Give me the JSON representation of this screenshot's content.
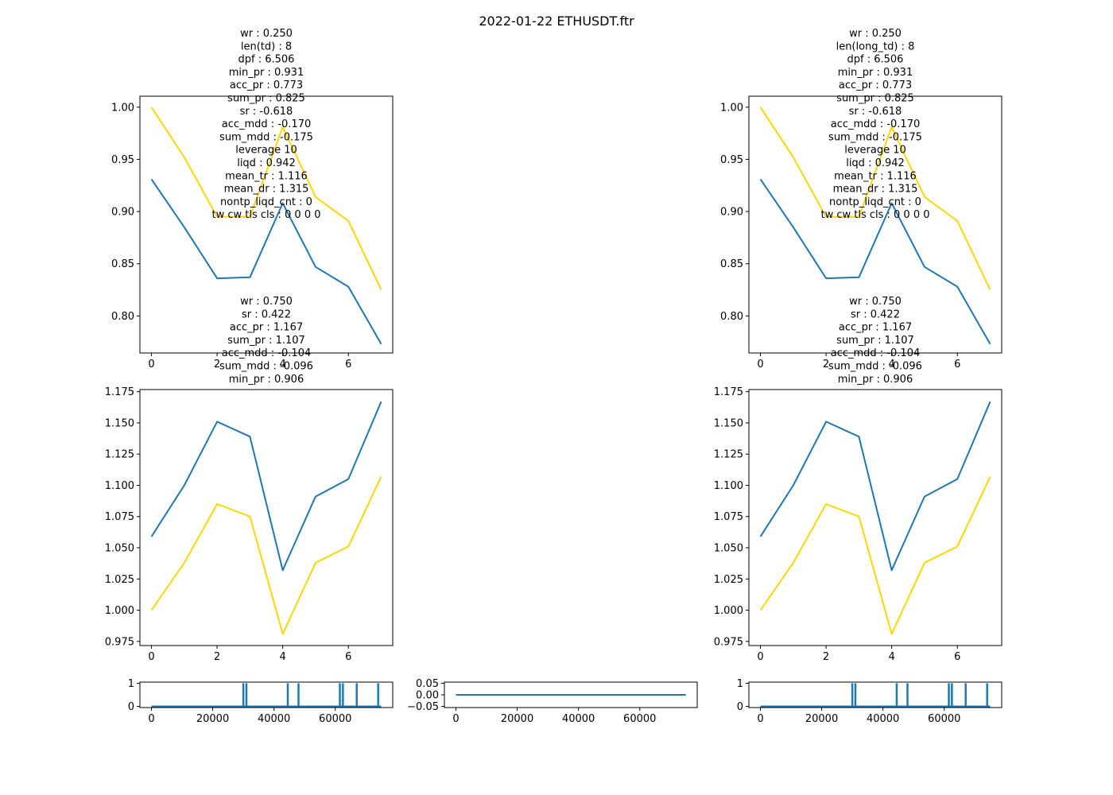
{
  "figure_title": "2022-01-22 ETHUSDT.ftr",
  "colors": {
    "blue": "#1f77b4",
    "gold": "#ffd700",
    "axis": "#000000"
  },
  "chart_data": [
    {
      "id": "top-left",
      "type": "line",
      "annotation": [
        "wr : 0.250",
        "len(td) : 8",
        "dpf : 6.506",
        "min_pr : 0.931",
        "acc_pr : 0.773",
        "sum_pr : 0.825",
        "sr : -0.618",
        "acc_mdd : -0.170",
        "sum_mdd : -0.175",
        "leverage 10",
        "liqd : 0.942",
        "mean_tr : 1.116",
        "mean_dr : 1.315",
        "nontp_liqd_cnt : 0",
        "tw cw tls cls : 0 0 0 0"
      ],
      "xlim": [
        -0.35,
        7.35
      ],
      "ylim": [
        0.7645,
        1.0105
      ],
      "xticks": [
        0,
        2,
        4,
        6
      ],
      "xtick_labels": [
        "0",
        "2",
        "4",
        "6"
      ],
      "yticks": [
        0.8,
        0.85,
        0.9,
        0.95,
        1.0
      ],
      "ytick_labels": [
        "0.80",
        "0.85",
        "0.90",
        "0.95",
        "1.00"
      ],
      "series": [
        {
          "color": "gold",
          "x": [
            0,
            1,
            2,
            3,
            4,
            5,
            6,
            7
          ],
          "y": [
            1.0,
            0.952,
            0.895,
            0.895,
            0.981,
            0.914,
            0.891,
            0.825
          ]
        },
        {
          "color": "blue",
          "x": [
            0,
            1,
            2,
            3,
            4,
            5,
            6,
            7
          ],
          "y": [
            0.931,
            0.885,
            0.836,
            0.837,
            0.908,
            0.847,
            0.828,
            0.773
          ]
        }
      ]
    },
    {
      "id": "top-right",
      "type": "line",
      "annotation": [
        "wr : 0.250",
        "len(long_td) : 8",
        "dpf : 6.506",
        "min_pr : 0.931",
        "acc_pr : 0.773",
        "sum_pr : 0.825",
        "sr : -0.618",
        "acc_mdd : -0.170",
        "sum_mdd : -0.175",
        "leverage 10",
        "liqd : 0.942",
        "mean_tr : 1.116",
        "mean_dr : 1.315",
        "nontp_liqd_cnt : 0",
        "tw cw tls cls : 0 0 0 0"
      ],
      "xlim": [
        -0.35,
        7.35
      ],
      "ylim": [
        0.7645,
        1.0105
      ],
      "xticks": [
        0,
        2,
        4,
        6
      ],
      "xtick_labels": [
        "0",
        "2",
        "4",
        "6"
      ],
      "yticks": [
        0.8,
        0.85,
        0.9,
        0.95,
        1.0
      ],
      "ytick_labels": [
        "0.80",
        "0.85",
        "0.90",
        "0.95",
        "1.00"
      ],
      "series": [
        {
          "color": "gold",
          "x": [
            0,
            1,
            2,
            3,
            4,
            5,
            6,
            7
          ],
          "y": [
            1.0,
            0.952,
            0.895,
            0.895,
            0.981,
            0.914,
            0.891,
            0.825
          ]
        },
        {
          "color": "blue",
          "x": [
            0,
            1,
            2,
            3,
            4,
            5,
            6,
            7
          ],
          "y": [
            0.931,
            0.885,
            0.836,
            0.837,
            0.908,
            0.847,
            0.828,
            0.773
          ]
        }
      ]
    },
    {
      "id": "mid-left",
      "type": "line",
      "annotation": [
        "wr : 0.750",
        "sr : 0.422",
        "acc_pr : 1.167",
        "sum_pr : 1.107",
        "acc_mdd : -0.104",
        "sum_mdd : -0.096",
        "min_pr : 0.906"
      ],
      "xlim": [
        -0.35,
        7.35
      ],
      "ylim": [
        0.9717,
        1.1767
      ],
      "xticks": [
        0,
        2,
        4,
        6
      ],
      "xtick_labels": [
        "0",
        "2",
        "4",
        "6"
      ],
      "yticks": [
        0.975,
        1.0,
        1.025,
        1.05,
        1.075,
        1.1,
        1.125,
        1.15,
        1.175
      ],
      "ytick_labels": [
        "0.975",
        "1.000",
        "1.025",
        "1.050",
        "1.075",
        "1.100",
        "1.125",
        "1.150",
        "1.175"
      ],
      "series": [
        {
          "color": "blue",
          "x": [
            0,
            1,
            2,
            3,
            4,
            5,
            6,
            7
          ],
          "y": [
            1.059,
            1.1,
            1.151,
            1.139,
            1.032,
            1.091,
            1.105,
            1.167
          ]
        },
        {
          "color": "gold",
          "x": [
            0,
            1,
            2,
            3,
            4,
            5,
            6,
            7
          ],
          "y": [
            1.0,
            1.038,
            1.085,
            1.075,
            0.981,
            1.038,
            1.051,
            1.107
          ]
        }
      ]
    },
    {
      "id": "mid-right",
      "type": "line",
      "annotation": [
        "wr : 0.750",
        "sr : 0.422",
        "acc_pr : 1.167",
        "sum_pr : 1.107",
        "acc_mdd : -0.104",
        "sum_mdd : -0.096",
        "min_pr : 0.906"
      ],
      "xlim": [
        -0.35,
        7.35
      ],
      "ylim": [
        0.9717,
        1.1767
      ],
      "xticks": [
        0,
        2,
        4,
        6
      ],
      "xtick_labels": [
        "0",
        "2",
        "4",
        "6"
      ],
      "yticks": [
        0.975,
        1.0,
        1.025,
        1.05,
        1.075,
        1.1,
        1.125,
        1.15,
        1.175
      ],
      "ytick_labels": [
        "0.975",
        "1.000",
        "1.025",
        "1.050",
        "1.075",
        "1.100",
        "1.125",
        "1.150",
        "1.175"
      ],
      "series": [
        {
          "color": "blue",
          "x": [
            0,
            1,
            2,
            3,
            4,
            5,
            6,
            7
          ],
          "y": [
            1.059,
            1.1,
            1.151,
            1.139,
            1.032,
            1.091,
            1.105,
            1.167
          ]
        },
        {
          "color": "gold",
          "x": [
            0,
            1,
            2,
            3,
            4,
            5,
            6,
            7
          ],
          "y": [
            1.0,
            1.038,
            1.085,
            1.075,
            0.981,
            1.038,
            1.051,
            1.107
          ]
        }
      ]
    },
    {
      "id": "bottom-left",
      "type": "line",
      "annotation": [],
      "xlim": [
        -3750,
        78750
      ],
      "ylim": [
        -0.05,
        1.05
      ],
      "xticks": [
        0,
        20000,
        40000,
        60000
      ],
      "xtick_labels": [
        "0",
        "20000",
        "40000",
        "60000"
      ],
      "yticks": [
        0,
        1
      ],
      "ytick_labels": [
        "0",
        "1"
      ],
      "spikes": [
        30000,
        31000,
        44500,
        48000,
        61500,
        62500,
        67000,
        74000
      ],
      "series": [
        {
          "color": "blue",
          "x": [
            0,
            75000
          ],
          "y": [
            0,
            0
          ]
        }
      ]
    },
    {
      "id": "bottom-middle",
      "type": "line",
      "annotation": [],
      "xlim": [
        -3750,
        78750
      ],
      "ylim": [
        -0.055,
        0.055
      ],
      "xticks": [
        0,
        20000,
        40000,
        60000
      ],
      "xtick_labels": [
        "0",
        "20000",
        "40000",
        "60000"
      ],
      "yticks": [
        -0.05,
        0.0,
        0.05
      ],
      "ytick_labels": [
        "−0.05",
        "0.00",
        "0.05"
      ],
      "series": [
        {
          "color": "blue",
          "x": [
            0,
            75000
          ],
          "y": [
            0,
            0
          ]
        }
      ]
    },
    {
      "id": "bottom-right",
      "type": "line",
      "annotation": [],
      "xlim": [
        -3750,
        78750
      ],
      "ylim": [
        -0.05,
        1.05
      ],
      "xticks": [
        0,
        20000,
        40000,
        60000
      ],
      "xtick_labels": [
        "0",
        "20000",
        "40000",
        "60000"
      ],
      "yticks": [
        0,
        1
      ],
      "ytick_labels": [
        "0",
        "1"
      ],
      "spikes": [
        30000,
        31000,
        44500,
        48000,
        61500,
        62500,
        67000,
        74000
      ],
      "series": [
        {
          "color": "blue",
          "x": [
            0,
            75000
          ],
          "y": [
            0,
            0
          ]
        }
      ]
    }
  ]
}
